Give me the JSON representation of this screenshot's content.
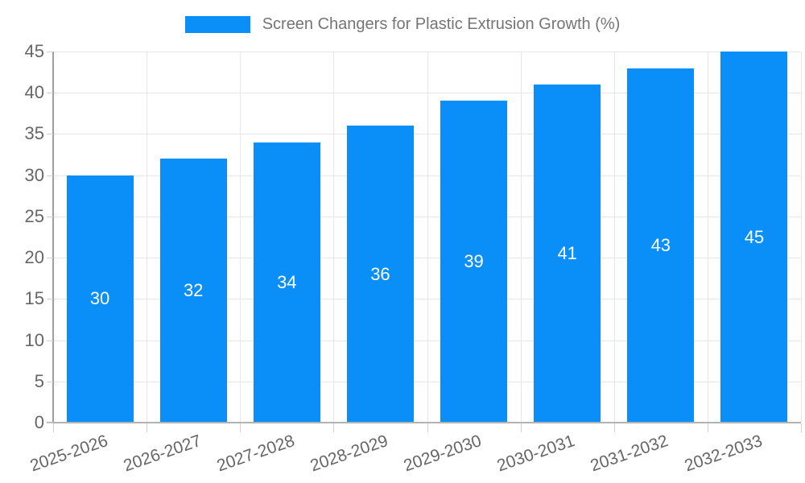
{
  "chart_data": {
    "type": "bar",
    "title": "Screen Changers for Plastic Extrusion Growth (%)",
    "categories": [
      "2025-2026",
      "2026-2027",
      "2027-2028",
      "2028-2029",
      "2029-2030",
      "2030-2031",
      "2031-2032",
      "2032-2033"
    ],
    "series": [
      {
        "name": "Screen Changers for Plastic Extrusion Growth (%)",
        "values": [
          30,
          32,
          34,
          36,
          39,
          41,
          43,
          45
        ]
      }
    ],
    "xlabel": "",
    "ylabel": "",
    "ylim": [
      0,
      45
    ],
    "yticks": [
      0,
      5,
      10,
      15,
      20,
      25,
      30,
      35,
      40,
      45
    ],
    "grid": true,
    "legend_position": "top",
    "x_tick_rotation_deg": -19,
    "value_labels_shown": true,
    "colors": {
      "bar": "#0a8ff9",
      "value_label": "#ffffff",
      "axis_text": "#666666",
      "legend_text": "#757575",
      "gridline": "#e6e6e6",
      "tick": "#d0d0d0",
      "axis_line": "#9e9e9e",
      "baseline": "#b3b3b3"
    }
  }
}
